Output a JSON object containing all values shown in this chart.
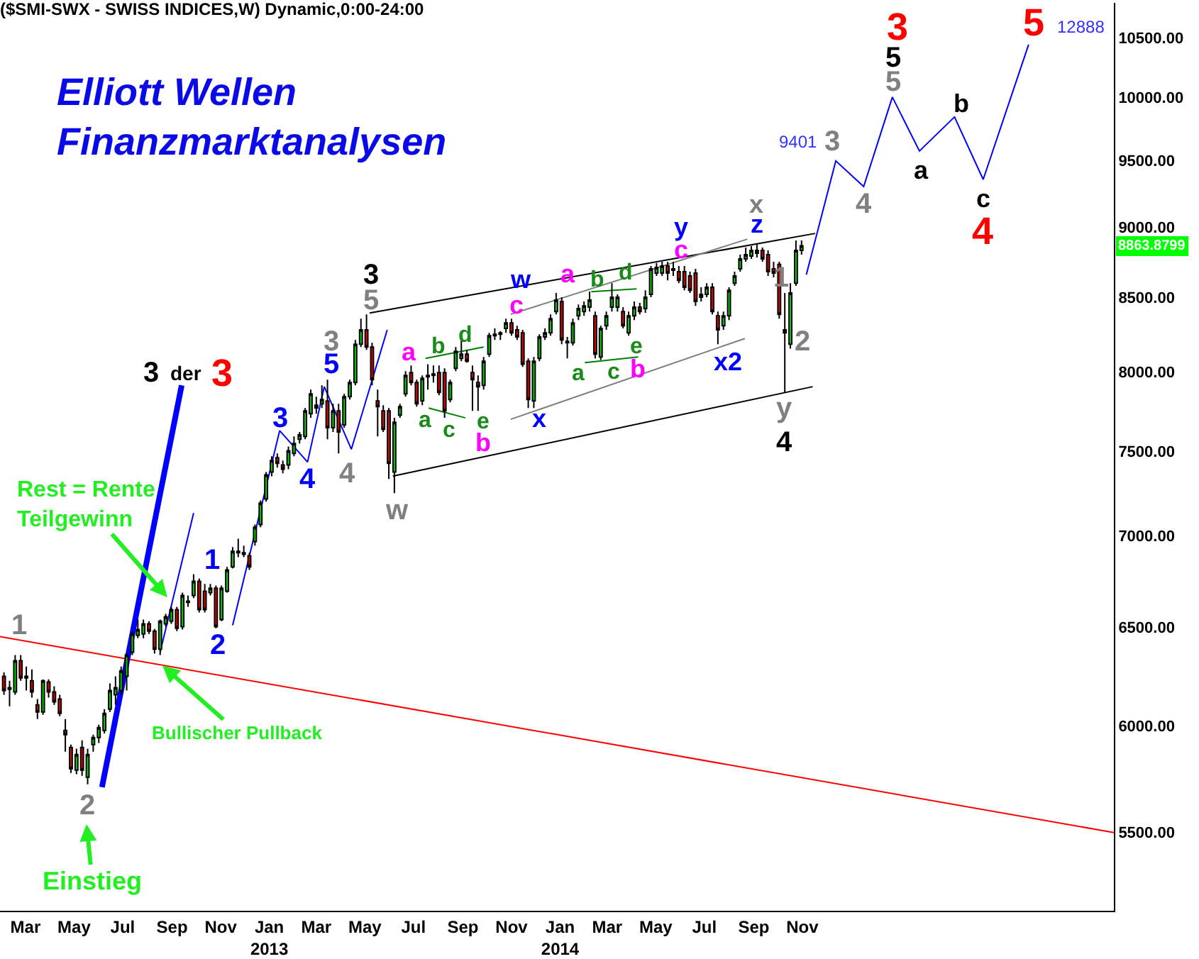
{
  "chart_data": {
    "type": "candlestick",
    "title": "($SMI-SWX - SWISS INDICES,W) Dynamic,0:00-24:00",
    "subtitle": "Elliott Wellen\nFinanzmarktanalysen",
    "log": true,
    "xlim": [
      "2012-01-29",
      "2015-11-27"
    ],
    "ylim": [
      5161,
      10800
    ],
    "xticks": [
      {
        "value": "2012-03-01",
        "label": "Mar"
      },
      {
        "value": "2012-05-01",
        "label": "May"
      },
      {
        "value": "2012-07-01",
        "label": "Jul"
      },
      {
        "value": "2012-09-01",
        "label": "Sep"
      },
      {
        "value": "2012-11-01",
        "label": "Nov"
      },
      {
        "value": "2013-01-01",
        "label": "Jan\n2013"
      },
      {
        "value": "2013-03-01",
        "label": "Mar"
      },
      {
        "value": "2013-05-01",
        "label": "May"
      },
      {
        "value": "2013-07-01",
        "label": "Jul"
      },
      {
        "value": "2013-09-01",
        "label": "Sep"
      },
      {
        "value": "2013-11-01",
        "label": "Nov"
      },
      {
        "value": "2014-01-01",
        "label": "Jan\n2014"
      },
      {
        "value": "2014-03-01",
        "label": "Mar"
      },
      {
        "value": "2014-05-01",
        "label": "May"
      },
      {
        "value": "2014-07-01",
        "label": "Jul"
      },
      {
        "value": "2014-09-01",
        "label": "Sep"
      },
      {
        "value": "2014-11-01",
        "label": "Nov"
      }
    ],
    "yticks": [
      {
        "value": 5500,
        "label": "5500.00"
      },
      {
        "value": 6000,
        "label": "6000.00"
      },
      {
        "value": 6500,
        "label": "6500.00"
      },
      {
        "value": 7000,
        "label": "7000.00"
      },
      {
        "value": 7500,
        "label": "7500.00"
      },
      {
        "value": 8000,
        "label": "8000.00"
      },
      {
        "value": 8500,
        "label": "8500.00"
      },
      {
        "value": 9000,
        "label": "9000.00"
      },
      {
        "value": 9500,
        "label": "9500.00"
      },
      {
        "value": 10000,
        "label": "10000.00"
      },
      {
        "value": 10500,
        "label": "10500.00"
      }
    ],
    "x": [
      "2012-02-03",
      "2012-02-10",
      "2012-02-17",
      "2012-02-24",
      "2012-03-02",
      "2012-03-09",
      "2012-03-16",
      "2012-03-23",
      "2012-03-30",
      "2012-04-06",
      "2012-04-13",
      "2012-04-20",
      "2012-04-27",
      "2012-05-04",
      "2012-05-11",
      "2012-05-18",
      "2012-05-25",
      "2012-06-01",
      "2012-06-08",
      "2012-06-15",
      "2012-06-22",
      "2012-06-29",
      "2012-07-06",
      "2012-07-13",
      "2012-07-20",
      "2012-07-27",
      "2012-08-03",
      "2012-08-10",
      "2012-08-17",
      "2012-08-24",
      "2012-08-31",
      "2012-09-07",
      "2012-09-14",
      "2012-09-21",
      "2012-09-28",
      "2012-10-05",
      "2012-10-12",
      "2012-10-19",
      "2012-10-26",
      "2012-11-02",
      "2012-11-09",
      "2012-11-16",
      "2012-11-23",
      "2012-11-30",
      "2012-12-07",
      "2012-12-14",
      "2012-12-21",
      "2012-12-28",
      "2013-01-04",
      "2013-01-11",
      "2013-01-18",
      "2013-01-25",
      "2013-02-01",
      "2013-02-08",
      "2013-02-15",
      "2013-02-22",
      "2013-03-01",
      "2013-03-08",
      "2013-03-15",
      "2013-03-22",
      "2013-03-29",
      "2013-04-05",
      "2013-04-12",
      "2013-04-19",
      "2013-04-26",
      "2013-05-03",
      "2013-05-10",
      "2013-05-17",
      "2013-05-24",
      "2013-05-31",
      "2013-06-07",
      "2013-06-14",
      "2013-06-21",
      "2013-06-28",
      "2013-07-05",
      "2013-07-12",
      "2013-07-19",
      "2013-07-26",
      "2013-08-02",
      "2013-08-09",
      "2013-08-16",
      "2013-08-23",
      "2013-08-30",
      "2013-09-06",
      "2013-09-13",
      "2013-09-20",
      "2013-09-27",
      "2013-10-04",
      "2013-10-11",
      "2013-10-18",
      "2013-10-25",
      "2013-11-01",
      "2013-11-08",
      "2013-11-15",
      "2013-11-22",
      "2013-11-29",
      "2013-12-06",
      "2013-12-13",
      "2013-12-20",
      "2013-12-27",
      "2014-01-03",
      "2014-01-10",
      "2014-01-17",
      "2014-01-24",
      "2014-01-31",
      "2014-02-07",
      "2014-02-14",
      "2014-02-21",
      "2014-02-28",
      "2014-03-07",
      "2014-03-14",
      "2014-03-21",
      "2014-03-28",
      "2014-04-04",
      "2014-04-11",
      "2014-04-18",
      "2014-04-25",
      "2014-05-02",
      "2014-05-09",
      "2014-05-16",
      "2014-05-23",
      "2014-05-30",
      "2014-06-06",
      "2014-06-13",
      "2014-06-20",
      "2014-06-27",
      "2014-07-04",
      "2014-07-11",
      "2014-07-18",
      "2014-07-25",
      "2014-08-01",
      "2014-08-08",
      "2014-08-15",
      "2014-08-22",
      "2014-08-29",
      "2014-09-05",
      "2014-09-12",
      "2014-09-19",
      "2014-09-26",
      "2014-10-03",
      "2014-10-10",
      "2014-10-17",
      "2014-10-24",
      "2014-10-31"
    ],
    "ohlc": [
      [
        6245,
        6266,
        6152,
        6173
      ],
      [
        6180,
        6223,
        6095,
        6188
      ],
      [
        6166,
        6354,
        6152,
        6325
      ],
      [
        6325,
        6354,
        6223,
        6237
      ],
      [
        6245,
        6295,
        6173,
        6237
      ],
      [
        6223,
        6280,
        6138,
        6166
      ],
      [
        6102,
        6131,
        6032,
        6067
      ],
      [
        6067,
        6230,
        6053,
        6223
      ],
      [
        6216,
        6230,
        6138,
        6166
      ],
      [
        6166,
        6195,
        6102,
        6117
      ],
      [
        6131,
        6152,
        6046,
        6060
      ],
      [
        5976,
        6032,
        5874,
        5956
      ],
      [
        5894,
        5908,
        5773,
        5793
      ],
      [
        5786,
        5888,
        5767,
        5860
      ],
      [
        5894,
        5928,
        5760,
        5786
      ],
      [
        5753,
        5888,
        5720,
        5860
      ],
      [
        5908,
        5956,
        5874,
        5942
      ],
      [
        5942,
        6004,
        5915,
        5990
      ],
      [
        5976,
        6081,
        5962,
        6060
      ],
      [
        6081,
        6209,
        6067,
        6173
      ],
      [
        6152,
        6245,
        6102,
        6188
      ],
      [
        6173,
        6295,
        6152,
        6273
      ],
      [
        6245,
        6361,
        6173,
        6354
      ],
      [
        6369,
        6479,
        6354,
        6464
      ],
      [
        6457,
        6540,
        6442,
        6487
      ],
      [
        6464,
        6540,
        6442,
        6517
      ],
      [
        6517,
        6532,
        6464,
        6479
      ],
      [
        6479,
        6490,
        6361,
        6384
      ],
      [
        6384,
        6540,
        6354,
        6532
      ],
      [
        6517,
        6570,
        6502,
        6555
      ],
      [
        6532,
        6608,
        6517,
        6593
      ],
      [
        6593,
        6608,
        6479,
        6494
      ],
      [
        6502,
        6685,
        6487,
        6670
      ],
      [
        6632,
        6670,
        6608,
        6639
      ],
      [
        6670,
        6786,
        6655,
        6747
      ],
      [
        6747,
        6763,
        6578,
        6593
      ],
      [
        6693,
        6732,
        6578,
        6593
      ],
      [
        6685,
        6732,
        6670,
        6709
      ],
      [
        6709,
        6724,
        6494,
        6502
      ],
      [
        6540,
        6724,
        6532,
        6709
      ],
      [
        6693,
        6826,
        6685,
        6810
      ],
      [
        6826,
        6937,
        6818,
        6913
      ],
      [
        6913,
        6985,
        6881,
        6905
      ],
      [
        6905,
        6945,
        6881,
        6897
      ],
      [
        6889,
        6905,
        6810,
        6826
      ],
      [
        6969,
        7066,
        6945,
        7050
      ],
      [
        7066,
        7206,
        7050,
        7190
      ],
      [
        7214,
        7374,
        7198,
        7357
      ],
      [
        7374,
        7469,
        7348,
        7443
      ],
      [
        7460,
        7486,
        7400,
        7426
      ],
      [
        7417,
        7443,
        7366,
        7391
      ],
      [
        7417,
        7529,
        7391,
        7503
      ],
      [
        7486,
        7591,
        7469,
        7547
      ],
      [
        7573,
        7618,
        7547,
        7600
      ],
      [
        7591,
        7768,
        7573,
        7750
      ],
      [
        7732,
        7885,
        7706,
        7858
      ],
      [
        7786,
        7840,
        7732,
        7768
      ],
      [
        7795,
        7913,
        7768,
        7822
      ],
      [
        7813,
        7949,
        7573,
        7644
      ],
      [
        7644,
        7795,
        7618,
        7750
      ],
      [
        7750,
        7795,
        7486,
        7618
      ],
      [
        7662,
        7858,
        7644,
        7840
      ],
      [
        7840,
        7949,
        7822,
        7931
      ],
      [
        7931,
        8210,
        7913,
        8182
      ],
      [
        8182,
        8354,
        8163,
        8278
      ],
      [
        8278,
        8383,
        8144,
        8163
      ],
      [
        8163,
        8191,
        7913,
        7949
      ],
      [
        7813,
        7885,
        7591,
        7777
      ],
      [
        7750,
        7786,
        7618,
        7635
      ],
      [
        7750,
        7768,
        7332,
        7426
      ],
      [
        7374,
        7706,
        7248,
        7679
      ],
      [
        7723,
        7795,
        7706,
        7777
      ],
      [
        7858,
        8004,
        7840,
        7977
      ],
      [
        7995,
        8041,
        7913,
        7931
      ],
      [
        7931,
        7949,
        7777,
        7795
      ],
      [
        7813,
        7977,
        7786,
        7958
      ],
      [
        7968,
        8050,
        7885,
        7977
      ],
      [
        7977,
        8041,
        7931,
        7986
      ],
      [
        7995,
        8041,
        7849,
        7867
      ],
      [
        7995,
        8023,
        7706,
        7750
      ],
      [
        7822,
        7949,
        7804,
        7931
      ],
      [
        8023,
        8163,
        8004,
        8135
      ],
      [
        8088,
        8210,
        8069,
        8116
      ],
      [
        8116,
        8144,
        8060,
        8069
      ],
      [
        7995,
        8041,
        7750,
        7949
      ],
      [
        7931,
        7977,
        7750,
        7904
      ],
      [
        7913,
        8097,
        7885,
        8069
      ],
      [
        8116,
        8258,
        8097,
        8239
      ],
      [
        8239,
        8287,
        8210,
        8248
      ],
      [
        8248,
        8268,
        8210,
        8258
      ],
      [
        8287,
        8354,
        8258,
        8325
      ],
      [
        8325,
        8354,
        8239,
        8258
      ],
      [
        8278,
        8306,
        8210,
        8230
      ],
      [
        8258,
        8278,
        8032,
        8050
      ],
      [
        8069,
        8088,
        7768,
        7822
      ],
      [
        7813,
        8097,
        7768,
        8069
      ],
      [
        8088,
        8248,
        8069,
        8230
      ],
      [
        8230,
        8287,
        8210,
        8258
      ],
      [
        8258,
        8383,
        8239,
        8354
      ],
      [
        8402,
        8530,
        8383,
        8481
      ],
      [
        8471,
        8500,
        8182,
        8210
      ],
      [
        8191,
        8230,
        8088,
        8201
      ],
      [
        8191,
        8354,
        8172,
        8325
      ],
      [
        8373,
        8451,
        8344,
        8422
      ],
      [
        8402,
        8471,
        8373,
        8441
      ],
      [
        8432,
        8540,
        8402,
        8481
      ],
      [
        8373,
        8402,
        8088,
        8116
      ],
      [
        8097,
        8306,
        8078,
        8287
      ],
      [
        8306,
        8402,
        8278,
        8373
      ],
      [
        8432,
        8598,
        8402,
        8500
      ],
      [
        8432,
        8520,
        8402,
        8500
      ],
      [
        8402,
        8432,
        8287,
        8306
      ],
      [
        8258,
        8402,
        8239,
        8373
      ],
      [
        8373,
        8471,
        8344,
        8432
      ],
      [
        8432,
        8461,
        8383,
        8402
      ],
      [
        8422,
        8549,
        8393,
        8500
      ],
      [
        8520,
        8719,
        8500,
        8699
      ],
      [
        8669,
        8740,
        8649,
        8709
      ],
      [
        8669,
        8750,
        8649,
        8719
      ],
      [
        8719,
        8750,
        8618,
        8669
      ],
      [
        8699,
        8750,
        8649,
        8689
      ],
      [
        8679,
        8719,
        8598,
        8618
      ],
      [
        8679,
        8719,
        8549,
        8569
      ],
      [
        8649,
        8679,
        8530,
        8549
      ],
      [
        8669,
        8699,
        8441,
        8471
      ],
      [
        8500,
        8569,
        8471,
        8520
      ],
      [
        8520,
        8598,
        8500,
        8569
      ],
      [
        8569,
        8598,
        8383,
        8402
      ],
      [
        8373,
        8402,
        8182,
        8278
      ],
      [
        8306,
        8402,
        8278,
        8373
      ],
      [
        8373,
        8569,
        8344,
        8549
      ],
      [
        8598,
        8679,
        8579,
        8649
      ],
      [
        8699,
        8800,
        8679,
        8770
      ],
      [
        8770,
        8851,
        8750,
        8800
      ],
      [
        8790,
        8861,
        8770,
        8831
      ],
      [
        8810,
        8872,
        8780,
        8831
      ],
      [
        8831,
        8851,
        8750,
        8770
      ],
      [
        8800,
        8831,
        8649,
        8679
      ],
      [
        8699,
        8750,
        8639,
        8669
      ],
      [
        8730,
        8750,
        8354,
        8383
      ],
      [
        8278,
        8530,
        7868,
        8258
      ],
      [
        8182,
        8598,
        8153,
        8530
      ],
      [
        8598,
        8902,
        8579,
        8831
      ],
      [
        8831,
        8902,
        8800,
        8863.8799
      ]
    ],
    "series": [
      {
        "type": "line",
        "color": "#ff0000",
        "x": [
          "2012-01-29",
          "2015-11-27"
        ],
        "values": [
          6450,
          5500
        ]
      },
      {
        "type": "line",
        "color": "#000000",
        "x": [
          "2013-05-07",
          "2014-11-17"
        ],
        "values": [
          8392,
          8953
        ]
      },
      {
        "type": "line",
        "color": "#000000",
        "x": [
          "2013-06-05",
          "2014-11-14"
        ],
        "values": [
          7349,
          7904
        ]
      },
      {
        "type": "line",
        "color": "#808080",
        "x": [
          "2013-10-31",
          "2014-08-24"
        ],
        "values": [
          8383,
          8912
        ]
      },
      {
        "type": "line",
        "color": "#808080",
        "x": [
          "2013-10-31",
          "2014-08-21"
        ],
        "values": [
          7697,
          8220
        ]
      },
      {
        "type": "line",
        "color": "#008000",
        "x": [
          "2013-07-20",
          "2013-09-04"
        ],
        "values": [
          7768,
          7706
        ]
      },
      {
        "type": "line",
        "color": "#008000",
        "x": [
          "2013-07-16",
          "2013-09-27"
        ],
        "values": [
          8088,
          8163
        ]
      },
      {
        "type": "line",
        "color": "#008000",
        "x": [
          "2014-02-09",
          "2014-04-07"
        ],
        "values": [
          8539,
          8559
        ]
      },
      {
        "type": "line",
        "color": "#008000",
        "x": [
          "2014-02-01",
          "2014-04-09"
        ],
        "values": [
          8060,
          8097
        ]
      },
      {
        "type": "line",
        "color": "#0000ff",
        "x": [
          "2012-11-16",
          "2013-01-14",
          "2013-02-18",
          "2013-03-11",
          "2013-04-14",
          "2013-05-29"
        ],
        "values": [
          6510,
          7626,
          7434,
          7904,
          7512,
          8278
        ]
      },
      {
        "type": "line",
        "color": "#0000ff",
        "x": [
          "2012-08-17",
          "2012-09-28"
        ],
        "values": [
          6369,
          7132
        ]
      },
      {
        "type": "line",
        "color": "#0000ff",
        "x": [
          "2012-06-05",
          "2012-09-13"
        ],
        "values": [
          5707,
          7913
        ]
      },
      {
        "type": "line",
        "color": "#0000ff",
        "x": [
          "2014-11-06",
          "2014-12-13",
          "2015-01-17",
          "2015-02-22",
          "2015-03-28",
          "2015-05-11",
          "2015-06-16",
          "2015-08-12"
        ],
        "values": [
          8658,
          9497,
          9301,
          10003,
          9574,
          9843,
          9355,
          10439
        ]
      }
    ],
    "annotations": [
      "1",
      "2",
      "Einstieg",
      {
        "text": "Bullischer Pullback",
        "x": "2012-08-20",
        "y": 6300
      },
      {
        "text": "Rest = Rente\nTeilgewinn",
        "x": "2012-08-26",
        "y": 6660
      },
      "1",
      "2",
      "3",
      "der",
      "3",
      "3",
      "4",
      "5",
      "3",
      "4",
      "5",
      "3",
      "w",
      "a",
      "b",
      "d",
      "a",
      "c",
      "e",
      "b",
      "w",
      "c",
      "x",
      "a",
      "b",
      "d",
      "a",
      "c",
      "e",
      "b",
      "y",
      "c",
      "x",
      "z",
      "x2",
      "1",
      "2",
      "y",
      "4",
      "9401",
      "3",
      "4",
      "3",
      "5",
      "5",
      "a",
      "b",
      "c",
      "4",
      "5",
      "12888",
      "8863.8799"
    ]
  }
}
